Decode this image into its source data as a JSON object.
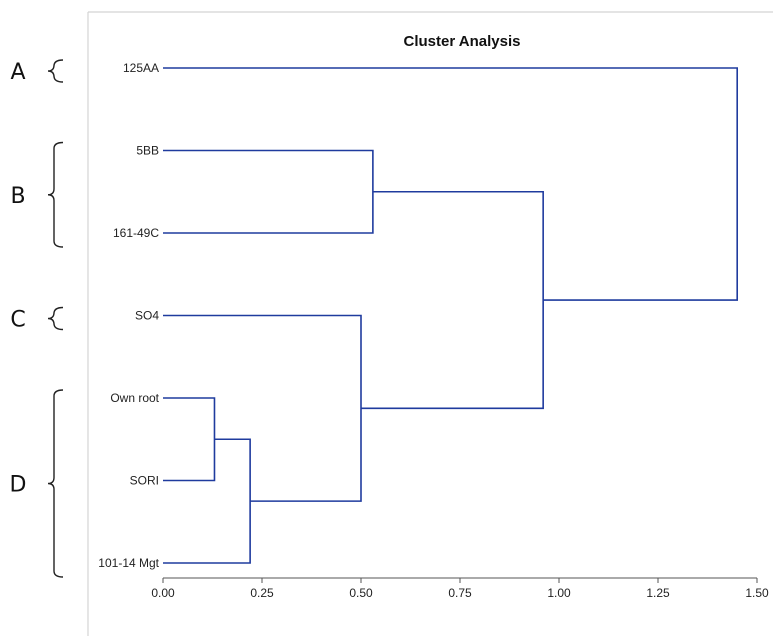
{
  "chart_data": {
    "type": "dendrogram",
    "title": "Cluster Analysis",
    "xlabel": "",
    "ylabel": "",
    "xlim": [
      0,
      1.5
    ],
    "x_ticks": [
      "0.00",
      "0.25",
      "0.50",
      "0.75",
      "1.00",
      "1.25",
      "1.50"
    ],
    "line_color": "#1f3b9e",
    "leaves": [
      "125AA",
      "5BB",
      "161-49C",
      "SO4",
      "Own root",
      "SORI",
      "101-14 Mgt"
    ],
    "merges": [
      {
        "id": "m1",
        "left": "Own root",
        "right": "SORI",
        "height": 0.13
      },
      {
        "id": "m2",
        "left": "m1",
        "right": "101-14 Mgt",
        "height": 0.22
      },
      {
        "id": "m3",
        "left": "SO4",
        "right": "m2",
        "height": 0.5
      },
      {
        "id": "m4",
        "left": "5BB",
        "right": "161-49C",
        "height": 0.53
      },
      {
        "id": "m5",
        "left": "m4",
        "right": "m3",
        "height": 0.96
      },
      {
        "id": "m6",
        "left": "125AA",
        "right": "m5",
        "height": 1.45
      }
    ],
    "groups": [
      {
        "letter": "A",
        "first": "125AA",
        "last": "125AA"
      },
      {
        "letter": "B",
        "first": "5BB",
        "last": "161-49C"
      },
      {
        "letter": "C",
        "first": "SO4",
        "last": "SO4"
      },
      {
        "letter": "D",
        "first": "Own root",
        "last": "101-14 Mgt"
      }
    ]
  }
}
